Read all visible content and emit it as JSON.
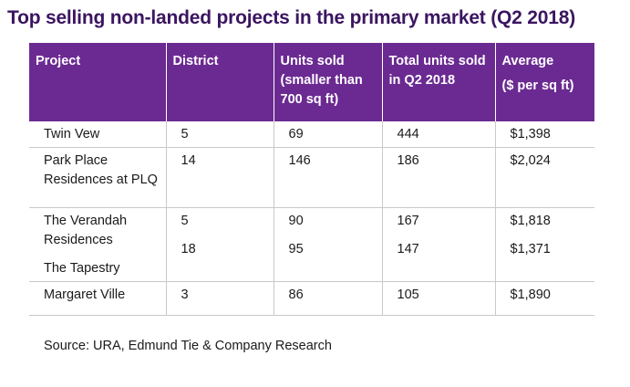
{
  "title": "Top selling non-landed projects in the primary market (Q2 2018)",
  "table": {
    "headers": {
      "project": "Project",
      "district": "District",
      "units_sold": "Units sold (smaller than 700 sq ft)",
      "total_units": "Total units sold in Q2 2018",
      "average_l1": "Average",
      "average_l2": "($ per sq ft)"
    },
    "rows": [
      {
        "project": "Twin Vew",
        "district": "5",
        "units_sold": "69",
        "total_units": "444",
        "average": "$1,398"
      },
      {
        "project": "Park Place Residences at PLQ",
        "district": "14",
        "units_sold": "146",
        "total_units": "186",
        "average": "$2,024"
      },
      {
        "project": "The Verandah Residences",
        "district": "5",
        "units_sold": "90",
        "total_units": "167",
        "average": "$1,818"
      },
      {
        "project": "The Tapestry",
        "district": "18",
        "units_sold": "95",
        "total_units": "147",
        "average": "$1,371"
      },
      {
        "project": "Margaret Ville",
        "district": "3",
        "units_sold": "86",
        "total_units": "105",
        "average": "$1,890"
      }
    ]
  },
  "source": "Source: URA, Edmund Tie & Company Research",
  "colors": {
    "title": "#3b1560",
    "header_bg": "#6b2a92",
    "header_text": "#ffffff",
    "grid": "#c9c9c9"
  }
}
